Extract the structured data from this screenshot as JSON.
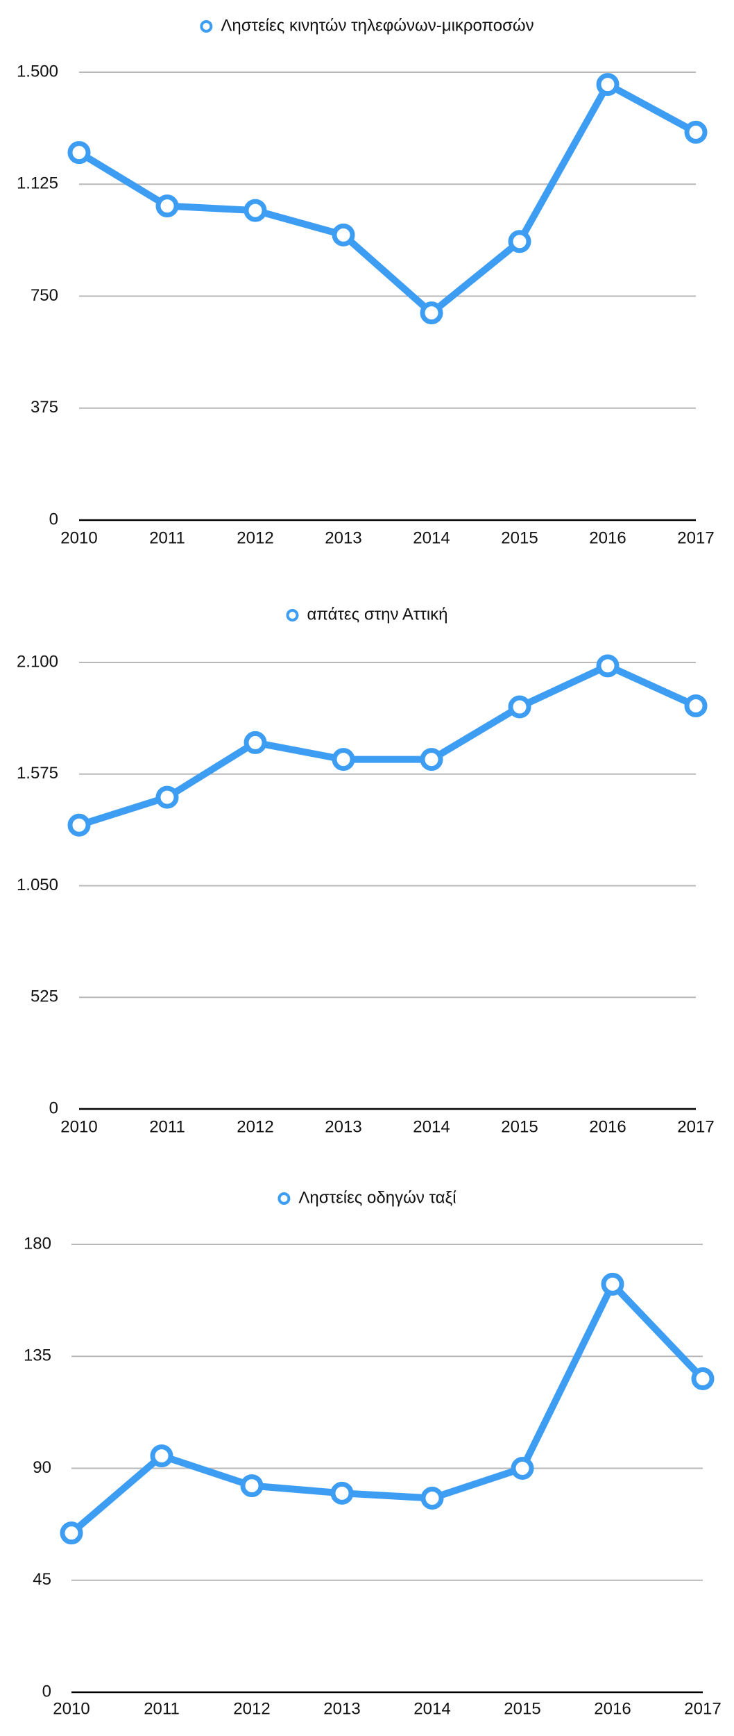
{
  "chart_data": [
    {
      "type": "line",
      "categories": [
        "2010",
        "2011",
        "2012",
        "2013",
        "2014",
        "2015",
        "2016",
        "2017"
      ],
      "series": [
        {
          "name": "Ληστείες κινητών τηλεφώνων-μικροποσών",
          "color": "#3d9df3",
          "values": [
            1231,
            1052,
            1037,
            955,
            694,
            933,
            1459,
            1299
          ]
        }
      ],
      "ylim": [
        0,
        1500
      ],
      "yticks": [
        0,
        375,
        750,
        {
          "value": 1125,
          "label": "1.125"
        },
        {
          "value": 1500,
          "label": "1.500"
        }
      ],
      "grid": true
    },
    {
      "type": "line",
      "categories": [
        "2010",
        "2011",
        "2012",
        "2013",
        "2014",
        "2015",
        "2016",
        "2017"
      ],
      "series": [
        {
          "name": "απάτες στην Αττική",
          "color": "#3d9df3",
          "values": [
            1335,
            1466,
            1723,
            1644,
            1644,
            1891,
            2084,
            1896
          ]
        }
      ],
      "ylim": [
        0,
        2100
      ],
      "yticks": [
        0,
        525,
        {
          "value": 1050,
          "label": "1.050"
        },
        {
          "value": 1575,
          "label": "1.575"
        },
        {
          "value": 2100,
          "label": "2.100"
        }
      ],
      "grid": true
    },
    {
      "type": "line",
      "categories": [
        "2010",
        "2011",
        "2012",
        "2013",
        "2014",
        "2015",
        "2016",
        "2017"
      ],
      "series": [
        {
          "name": "Ληστείες οδηγών ταξί",
          "color": "#3d9df3",
          "values": [
            64,
            95,
            83,
            80,
            78,
            90,
            164,
            126
          ]
        }
      ],
      "ylim": [
        0,
        180
      ],
      "yticks": [
        0,
        45,
        90,
        135,
        180
      ],
      "grid": true
    }
  ]
}
